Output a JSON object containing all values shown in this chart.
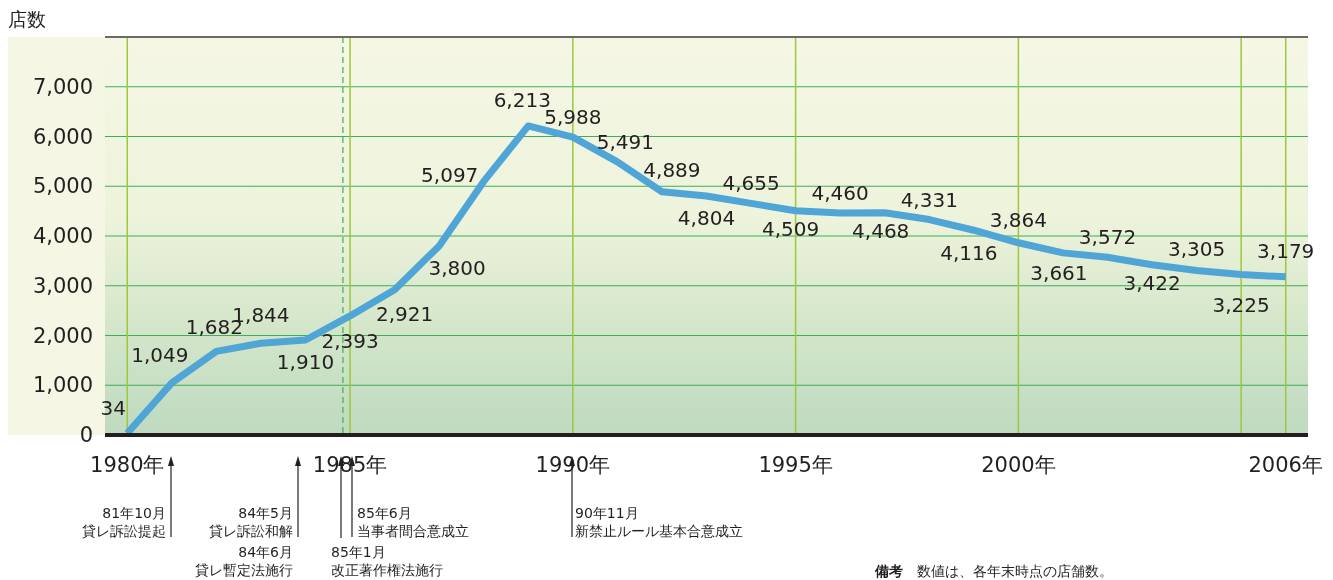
{
  "chart_data": {
    "type": "line",
    "ylabel": "店数",
    "x": [
      1980,
      1981,
      1982,
      1983,
      1984,
      1985,
      1986,
      1987,
      1988,
      1989,
      1990,
      1991,
      1992,
      1993,
      1994,
      1995,
      1996,
      1997,
      1998,
      1999,
      2000,
      2001,
      2002,
      2003,
      2004,
      2005,
      2006
    ],
    "series": [
      {
        "color": "#4ea5d6",
        "values": [
          34,
          1049,
          1682,
          1844,
          1910,
          2393,
          2921,
          3800,
          5097,
          6213,
          5988,
          5491,
          4889,
          4804,
          4655,
          4509,
          4460,
          4468,
          4331,
          4116,
          3864,
          3661,
          3572,
          3422,
          3305,
          3225,
          3179
        ],
        "value_labels": [
          "34",
          "1,049",
          "1,682",
          "1,844",
          "1,910",
          "2,393",
          "2,921",
          "3,800",
          "5,097",
          "6,213",
          "5,988",
          "5,491",
          "4,889",
          "4,804",
          "4,655",
          "4,509",
          "4,460",
          "4,468",
          "4,331",
          "4,116",
          "3,864",
          "3,661",
          "3,572",
          "3,422",
          "3,305",
          "3,225",
          "3,179"
        ]
      }
    ],
    "xlim": [
      1979.5,
      2006.5
    ],
    "xticks": [
      {
        "value": 1980,
        "label": "1980年"
      },
      {
        "value": 1985,
        "label": "1985年"
      },
      {
        "value": 1990,
        "label": "1990年"
      },
      {
        "value": 1995,
        "label": "1995年"
      },
      {
        "value": 2000,
        "label": "2000年"
      },
      {
        "value": 2005,
        "label": null
      },
      {
        "value": 2006,
        "label": "2006年"
      }
    ],
    "ylim": [
      0,
      8000
    ],
    "yticks": [
      0,
      {
        "value": 1000,
        "label": "1,000"
      },
      {
        "value": 2000,
        "label": "2,000"
      },
      {
        "value": 3000,
        "label": "3,000"
      },
      {
        "value": 4000,
        "label": "4,000"
      },
      {
        "value": 5000,
        "label": "5,000"
      },
      {
        "value": 6000,
        "label": "6,000"
      },
      {
        "value": 7000,
        "label": "7,000"
      }
    ],
    "grid": true,
    "marker": "none",
    "line_style": "solid",
    "ref_lines": [
      {
        "axis": "x",
        "value": 1984.84,
        "line_style": "dashed",
        "color": "#3fae5a"
      }
    ],
    "annotations": [
      "81年10月",
      "貸レ訴訟提起",
      "84年5月",
      "貸レ訴訟和解",
      "84年6月",
      "貸レ暫定法施行",
      "85年1月",
      "改正著作権法施行",
      "85年6月",
      "当事者間合意成立",
      "90年11月",
      "新禁止ルール基本合意成立",
      "備考　数値は、各年末時点の店舗数。"
    ]
  }
}
